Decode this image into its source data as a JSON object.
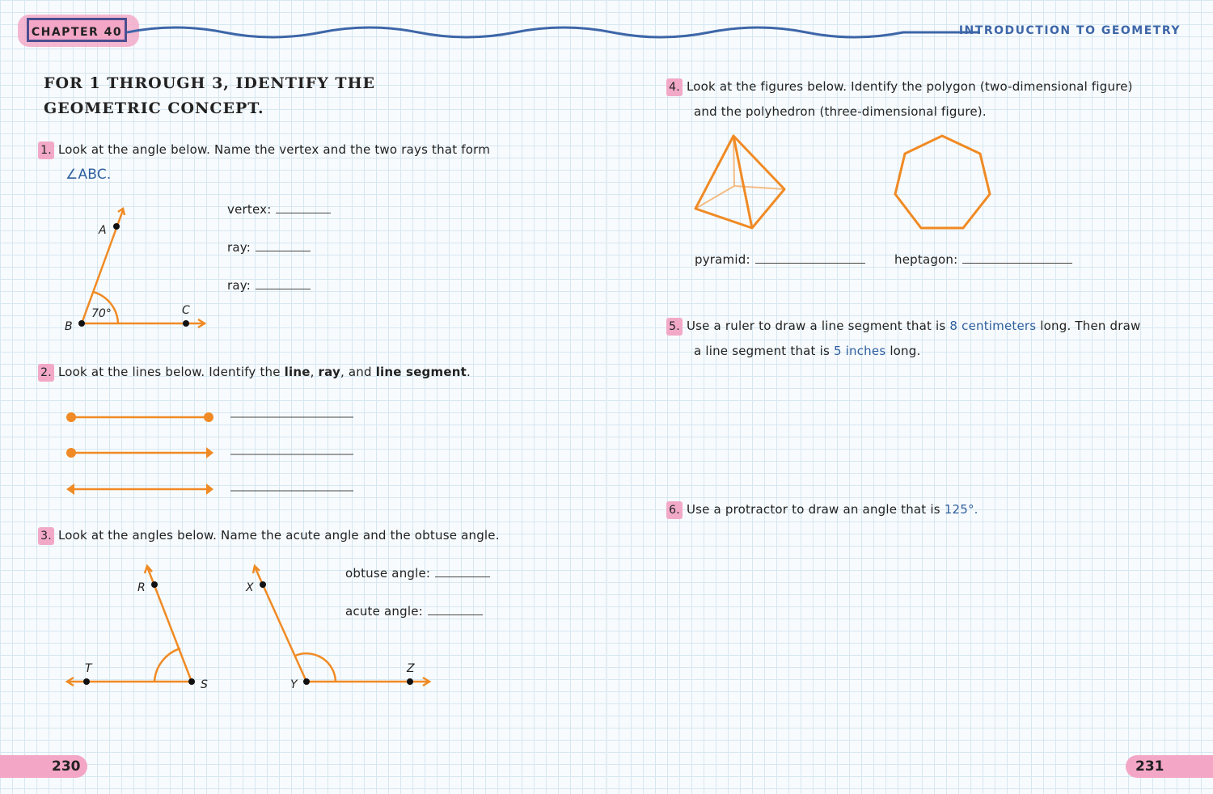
{
  "header": {
    "chapter": "CHAPTER 40",
    "section": "INTRODUCTION TO GEOMETRY"
  },
  "colors": {
    "accent_orange": "#f08a24",
    "highlight_pink": "#f3a6c6",
    "ink_blue": "#2f5f9e",
    "grid": "#d6e7f1"
  },
  "left": {
    "instruction": "FOR 1 THROUGH 3, IDENTIFY THE GEOMETRIC CONCEPT.",
    "q1": {
      "number": "1.",
      "text": "Look at the angle below. Name the vertex and the two rays that form",
      "angle_ref": "∠ABC.",
      "labels": {
        "a": "A",
        "b": "B",
        "c": "C",
        "angle": "70°"
      },
      "answers": [
        "vertex:",
        "ray:",
        "ray:"
      ]
    },
    "q2": {
      "number": "2.",
      "text_pre": "Look at the lines below. Identify the",
      "t1": "line",
      "t2": "ray",
      "t3": "and",
      "t4": "line segment",
      "end": "."
    },
    "q3": {
      "number": "3.",
      "text": "Look at the angles below. Name the acute angle and the obtuse angle.",
      "labels": {
        "r": "R",
        "t": "T",
        "s": "S",
        "x": "X",
        "y": "Y",
        "z": "Z"
      },
      "answers": [
        "obtuse angle:",
        "acute angle:"
      ]
    },
    "page": "230"
  },
  "right": {
    "q4": {
      "number": "4.",
      "line1": "Look at the figures below. Identify the polygon (two-dimensional figure)",
      "line2": "and the polyhedron (three-dimensional figure).",
      "answers": [
        "pyramid:",
        "heptagon:"
      ]
    },
    "q5": {
      "number": "5.",
      "a": "Use a ruler to draw a line segment that is",
      "b": "8 centimeters",
      "c": "long. Then draw",
      "d": "a line segment that is",
      "e": "5 inches",
      "f": "long."
    },
    "q6": {
      "number": "6.",
      "text": "Use a protractor to draw an angle that is",
      "value": "125°."
    },
    "page": "231"
  }
}
